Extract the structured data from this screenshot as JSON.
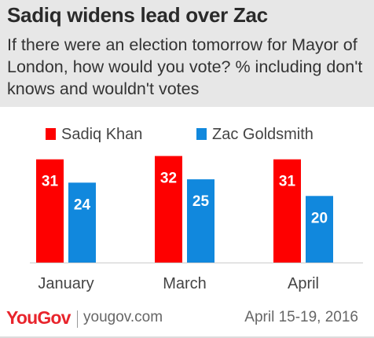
{
  "header": {
    "title": "Sadiq widens lead over Zac",
    "subtitle": "If there were an election tomorrow for Mayor of London, how would you vote? % including don't knows and wouldn't votes"
  },
  "colors": {
    "sadiq": "#fe0000",
    "zac": "#1188dd",
    "header_bg": "#e7e7e7",
    "brand": "#e8242c"
  },
  "chart_data": {
    "type": "bar",
    "title": "Sadiq widens lead over Zac",
    "categories": [
      "January",
      "March",
      "April"
    ],
    "series": [
      {
        "name": "Sadiq Khan",
        "values": [
          31,
          32,
          31
        ]
      },
      {
        "name": "Zac Goldsmith",
        "values": [
          24,
          25,
          20
        ]
      }
    ],
    "ylim": [
      0,
      34
    ],
    "grid": false,
    "legend": "top-left"
  },
  "footer": {
    "logo": "YouGov",
    "site": "yougov.com",
    "date": "April 15-19, 2016"
  }
}
